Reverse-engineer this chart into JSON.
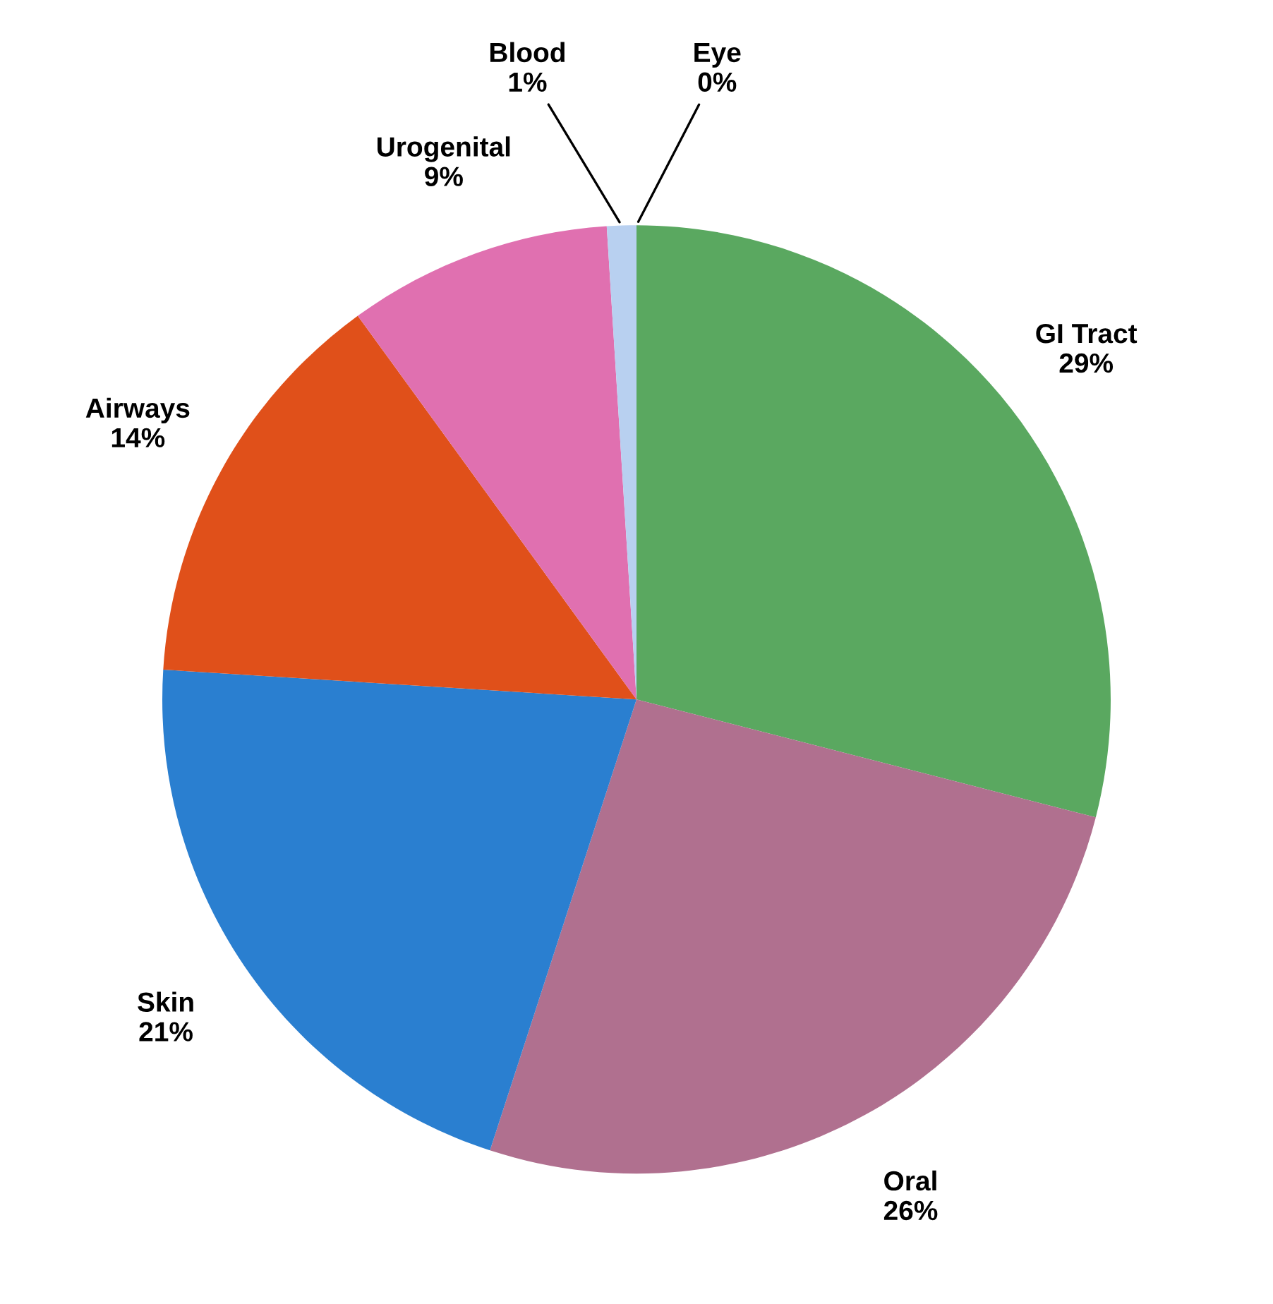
{
  "chart_data": {
    "type": "pie",
    "categories": [
      "GI Tract",
      "Oral",
      "Skin",
      "Airways",
      "Urogenital",
      "Blood",
      "Eye"
    ],
    "values": [
      29,
      26,
      21,
      14,
      9,
      1,
      0
    ],
    "value_labels": [
      "29%",
      "26%",
      "21%",
      "14%",
      "9%",
      "1%",
      "0%"
    ],
    "colors": [
      "#5aa860",
      "#b0708f",
      "#2a7fd0",
      "#e0501a",
      "#e070b0",
      "#b8d0f0",
      "#d03020"
    ],
    "legend": false
  }
}
